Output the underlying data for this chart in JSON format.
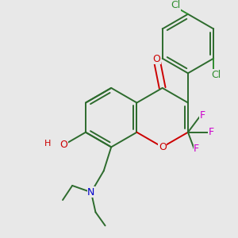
{
  "background_color": "#e8e8e8",
  "bond_color": "#2d6b2d",
  "atom_colors": {
    "O": "#cc0000",
    "N": "#0000cc",
    "F": "#cc00cc",
    "Cl": "#2d8c2d",
    "H": "#555555",
    "C": "#2d6b2d"
  },
  "bond_width": 1.4,
  "figsize": [
    3.0,
    3.0
  ],
  "dpi": 100
}
